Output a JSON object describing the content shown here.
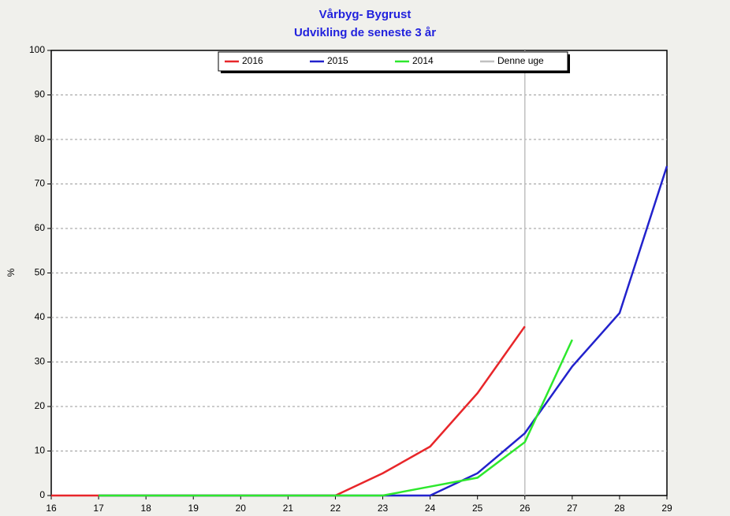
{
  "chart_data": {
    "type": "line",
    "title": "Vårbyg- Bygrust",
    "subtitle": "Udvikling de seneste 3 år",
    "y_label": "%",
    "x": [
      16,
      17,
      18,
      19,
      20,
      21,
      22,
      23,
      24,
      25,
      26,
      27,
      28,
      29
    ],
    "series": [
      {
        "name": "2016",
        "color": "#e8262a",
        "values": [
          0,
          0,
          0,
          0,
          0,
          0,
          0,
          5,
          11,
          23,
          38,
          null,
          null,
          null
        ]
      },
      {
        "name": "2015",
        "color": "#2222cc",
        "values": [
          null,
          0,
          0,
          0,
          0,
          0,
          0,
          0,
          0,
          5,
          14,
          29,
          41,
          74
        ]
      },
      {
        "name": "2014",
        "color": "#2de82d",
        "values": [
          null,
          0,
          0,
          0,
          0,
          0,
          0,
          0,
          2,
          4,
          12,
          35,
          null,
          null
        ]
      }
    ],
    "vlines": [
      {
        "name": "Denne uge",
        "color": "#c0c0c0",
        "x": 26
      }
    ],
    "xlim": [
      16,
      29
    ],
    "xticks": [
      16,
      17,
      18,
      19,
      20,
      21,
      22,
      23,
      24,
      25,
      26,
      27,
      28,
      29
    ],
    "ylim": [
      0,
      100
    ],
    "yticks": [
      0,
      10,
      20,
      30,
      40,
      50,
      60,
      70,
      80,
      90,
      100
    ],
    "grid": true,
    "legend": "top"
  }
}
